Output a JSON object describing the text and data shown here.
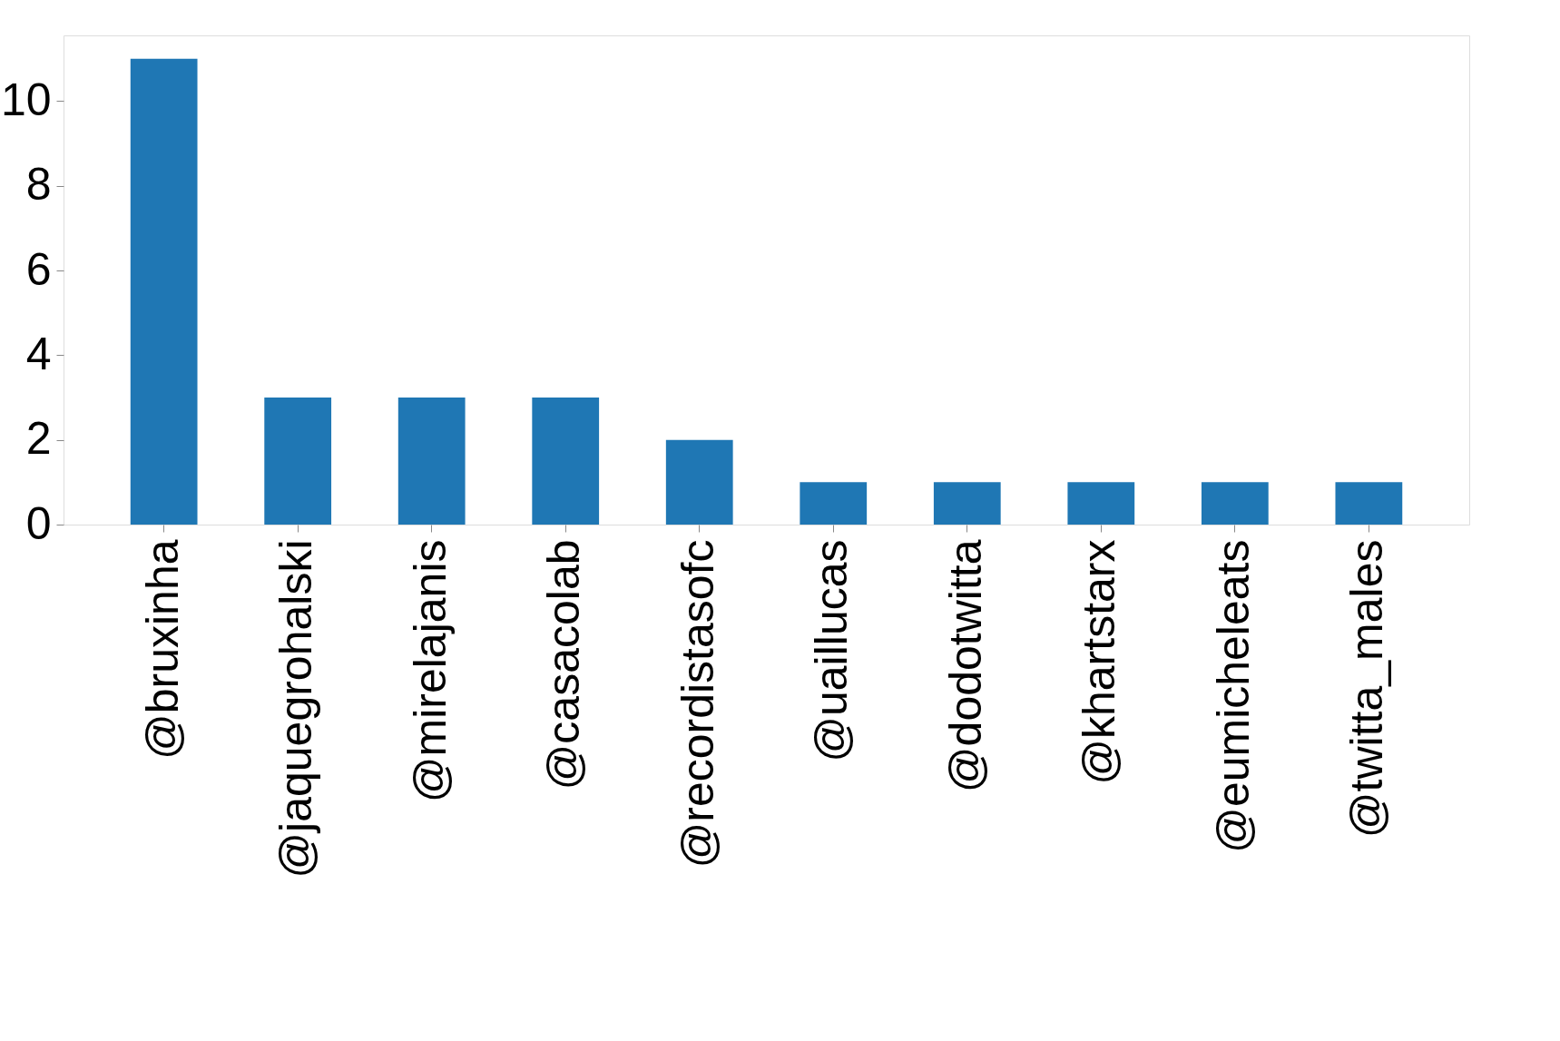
{
  "chart_data": {
    "type": "bar",
    "categories": [
      "@bruxinha",
      "@jaquegrohalski",
      "@mirelajanis",
      "@casacolab",
      "@recordistasofc",
      "@uaillucas",
      "@dodotwitta",
      "@khartstarx",
      "@eumicheleats",
      "@twitta_males"
    ],
    "values": [
      11,
      3,
      3,
      3,
      2,
      1,
      1,
      1,
      1,
      1
    ],
    "color": "#1f77b4",
    "ylim": [
      0,
      11.55
    ],
    "yticks": [
      0,
      2,
      4,
      6,
      8,
      10
    ],
    "grid": false
  }
}
